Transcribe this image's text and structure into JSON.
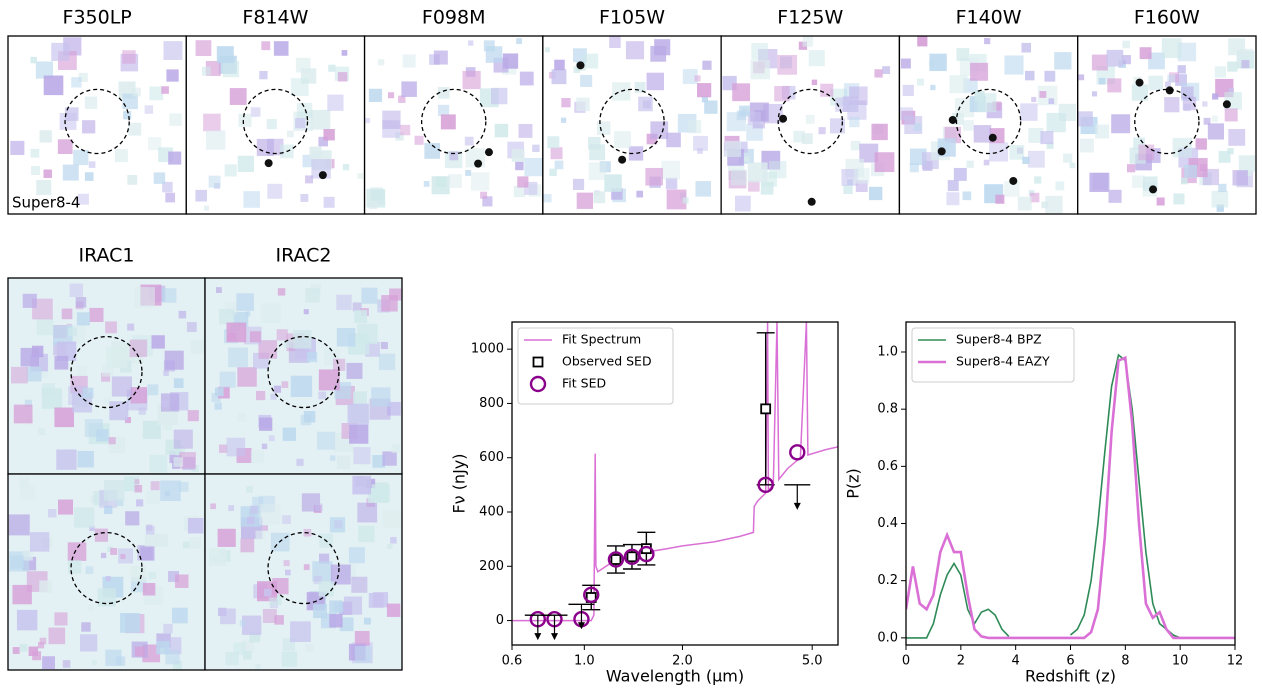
{
  "stamps": {
    "hst_filters": [
      "F350LP",
      "F814W",
      "F098M",
      "F105W",
      "F125W",
      "F140W",
      "F160W"
    ],
    "source_label": "Super8-4",
    "irac_filters": [
      "IRAC1",
      "IRAC2"
    ]
  },
  "chart_data": [
    {
      "type": "scatter",
      "xlabel": "Wavelength (μm)",
      "ylabel": "Fν (nJy)",
      "log_x": true,
      "xlim": [
        0.6,
        6.0
      ],
      "ylim": [
        -90,
        1100
      ],
      "xticks": [
        0.6,
        {
          "value": 1,
          "label": "1.0"
        },
        {
          "value": 2,
          "label": "2.0"
        },
        {
          "value": 5,
          "label": "5.0"
        }
      ],
      "yticks": [
        0,
        200,
        400,
        600,
        800,
        1000
      ],
      "legend": "upper left",
      "series": [
        {
          "name": "Fit Spectrum",
          "color": "#da70d6",
          "style": "line",
          "x": [
            0.6,
            0.9,
            1.05,
            1.07,
            1.08,
            1.085,
            1.1,
            1.2,
            1.4,
            1.6,
            1.8,
            2.0,
            2.5,
            3.0,
            3.3,
            3.32,
            3.4,
            3.6,
            3.65,
            3.67,
            3.8,
            3.9,
            3.95,
            4.2,
            4.6,
            4.8,
            4.85,
            5.5,
            6.0
          ],
          "values": [
            0,
            0,
            0,
            20,
            615,
            200,
            180,
            210,
            240,
            255,
            265,
            275,
            290,
            310,
            325,
            420,
            440,
            470,
            1100,
            480,
            500,
            1100,
            520,
            560,
            600,
            1100,
            610,
            630,
            640
          ]
        },
        {
          "name": "Observed SED",
          "color": "#000000",
          "style": "square",
          "x": [
            1.05,
            1.25,
            1.4,
            1.55,
            3.6
          ],
          "values": [
            85,
            225,
            235,
            265,
            780
          ],
          "errors": [
            45,
            50,
            45,
            60,
            280
          ]
        },
        {
          "name": "Fit SED",
          "color": "#8b008b",
          "style": "circle",
          "x": [
            0.72,
            0.81,
            0.98,
            1.05,
            1.25,
            1.4,
            1.55,
            3.6,
            4.5
          ],
          "values": [
            5,
            5,
            5,
            95,
            225,
            235,
            245,
            500,
            620
          ]
        }
      ],
      "upper_limits": {
        "color": "#000000",
        "x": [
          0.72,
          0.81,
          0.98,
          4.5
        ],
        "values": [
          20,
          20,
          60,
          500
        ]
      }
    },
    {
      "type": "line",
      "xlabel": "Redshift (z)",
      "ylabel": "P(z)",
      "xlim": [
        0,
        12
      ],
      "ylim": [
        -0.025,
        1.105
      ],
      "xticks": [
        0,
        2,
        4,
        6,
        8,
        10,
        12
      ],
      "yticks": [
        {
          "value": 0,
          "label": "0.0"
        },
        0.2,
        0.4,
        0.6,
        0.8,
        {
          "value": 1,
          "label": "1.0"
        }
      ],
      "legend": "upper left",
      "x": [
        0,
        0.25,
        0.5,
        0.75,
        1,
        1.25,
        1.5,
        1.75,
        2,
        2.25,
        2.5,
        2.75,
        3,
        3.25,
        3.5,
        3.75,
        4,
        4.25,
        4.5,
        4.75,
        5,
        5.25,
        5.5,
        5.75,
        6,
        6.25,
        6.5,
        6.75,
        7,
        7.25,
        7.5,
        7.75,
        8,
        8.25,
        8.5,
        8.75,
        9,
        9.25,
        9.5,
        9.75,
        10,
        10.25,
        10.5,
        10.75,
        11,
        11.25,
        11.5,
        11.75,
        12
      ],
      "series": [
        {
          "name": "Super8-4 BPZ",
          "color": "#2e8b57",
          "width": 1.6,
          "values": [
            0,
            0,
            0,
            0,
            0.05,
            0.15,
            0.22,
            0.26,
            0.22,
            0.1,
            0.05,
            0.09,
            0.1,
            0.08,
            0.03,
            0.005,
            null,
            null,
            null,
            null,
            null,
            null,
            null,
            null,
            0.01,
            0.03,
            0.08,
            0.2,
            0.4,
            0.65,
            0.88,
            0.99,
            0.97,
            0.8,
            0.55,
            0.3,
            0.12,
            0.05,
            0.03,
            0.01,
            0,
            0,
            null,
            null,
            null,
            null,
            null,
            null,
            null
          ]
        },
        {
          "name": "Super8-4 EAZY",
          "color": "#da70d6",
          "width": 2.6,
          "values": [
            0.1,
            0.25,
            0.12,
            0.1,
            0.15,
            0.3,
            0.36,
            0.3,
            0.3,
            0.15,
            0.03,
            0.005,
            0,
            0,
            0,
            0,
            0,
            0,
            0,
            0,
            0,
            0,
            0,
            0,
            0,
            0,
            0,
            0.02,
            0.1,
            0.35,
            0.72,
            0.97,
            0.98,
            0.75,
            0.4,
            0.12,
            0.07,
            0.09,
            0.03,
            0,
            0,
            0,
            0,
            0,
            0,
            0,
            0,
            0,
            0
          ]
        }
      ]
    }
  ]
}
